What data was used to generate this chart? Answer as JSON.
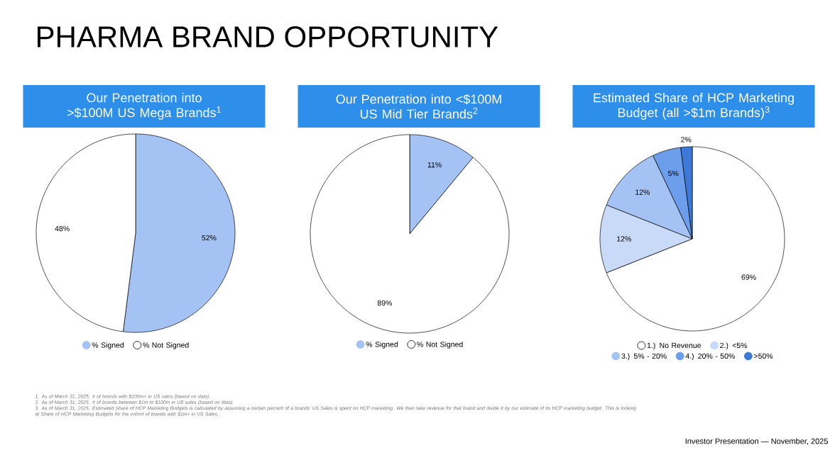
{
  "chart_data": [
    {
      "type": "pie",
      "title": "Our Penetration into >$100M US Mega Brands$^{1}$",
      "categories": [
        "% Signed",
        "% Not Signed"
      ],
      "values": [
        52,
        48
      ],
      "colors": [
        "#a4c2f4",
        "#ffffff"
      ],
      "value_labels": [
        "52%",
        "48%"
      ],
      "legend": "bottom",
      "annotations": [
        "PHARMA BRAND OPPORTUNITY"
      ]
    },
    {
      "type": "pie",
      "title": "Our Penetration into <$100M US Mid Tier Brands$^{2}$",
      "categories": [
        "% Signed",
        "% Not Signed"
      ],
      "values": [
        11,
        89
      ],
      "colors": [
        "#a4c2f4",
        "#ffffff"
      ],
      "value_labels": [
        "11%",
        "89%"
      ],
      "legend": "bottom"
    },
    {
      "type": "pie",
      "title": "Estimated Share of HCP Marketing Budget (all >$1m Brands)$^{3}$",
      "categories": [
        "1.) No Revenue",
        "2.) <5%",
        "3.) 5% - 20%",
        "4.) 20% - 50%",
        ">50%"
      ],
      "values": [
        69,
        12,
        12,
        5,
        2
      ],
      "colors": [
        "#ffffff",
        "#c9daf8",
        "#a4c2f4",
        "#6d9eeb",
        "#3c78d8"
      ],
      "value_labels": [
        "69%",
        "12%",
        "12%",
        "5%",
        "2%"
      ],
      "legend": "bottom",
      "annotations": [
        "1. As of March 31, 2025. # of brands with $100m+ in US sales (based on data).",
        "2. As of March 31, 2025. # of brands between $1m to $100m in US sales (based on data).",
        "3. As of March 31, 2025. Estimated Share of HCP Marketing Budgets is calculated by assuming a certain percent of a brands' US Sales is spent on HCP marketing. We then take revenue for that brand and divide it by our estimate of its HCP marketing budget. This is looking at Share of HCP Marketing Budgets for the cohort of brands with $1m+ in US Sales.",
        "Investor Presentation — November, 2025"
      ]
    }
  ]
}
